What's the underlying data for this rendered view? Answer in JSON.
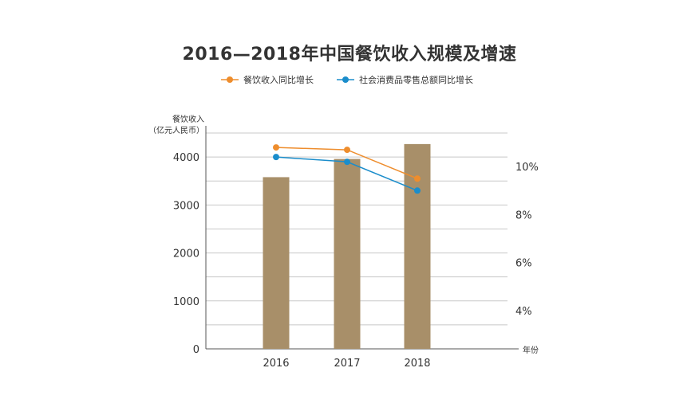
{
  "chart_data": {
    "type": "bar",
    "title": "2016—2018年中国餐饮收入规模及增速",
    "categories": [
      "2016",
      "2017",
      "2018"
    ],
    "series": [
      {
        "name": "",
        "type": "bar",
        "axis": "left",
        "values": [
          3580,
          3960,
          4270
        ]
      },
      {
        "name": "餐饮收入同比增长",
        "type": "line",
        "axis": "right",
        "values": [
          10.8,
          10.7,
          9.5
        ]
      },
      {
        "name": "社会消费品零售总额同比增长",
        "type": "line",
        "axis": "right",
        "values": [
          10.4,
          10.2,
          9.0
        ]
      }
    ],
    "ylabel_left_line1": "餐饮收入",
    "ylabel_left_line2": "（亿元人民币）",
    "xlabel": "年份",
    "ylim_left": [
      0,
      4650
    ],
    "yticks_left": [
      "0",
      "1000",
      "2000",
      "3000",
      "4000"
    ],
    "ylim_right": [
      2.4,
      11.7
    ],
    "yticks_right": [
      "4%",
      "6%",
      "8%",
      "10%"
    ],
    "grid": true,
    "legend_position": "top",
    "colors": {
      "bar": "#A88F69",
      "line1": "#EE8D2D",
      "line2": "#1B8DCB",
      "grid": "#c8c8c8",
      "axis": "#555555"
    }
  }
}
